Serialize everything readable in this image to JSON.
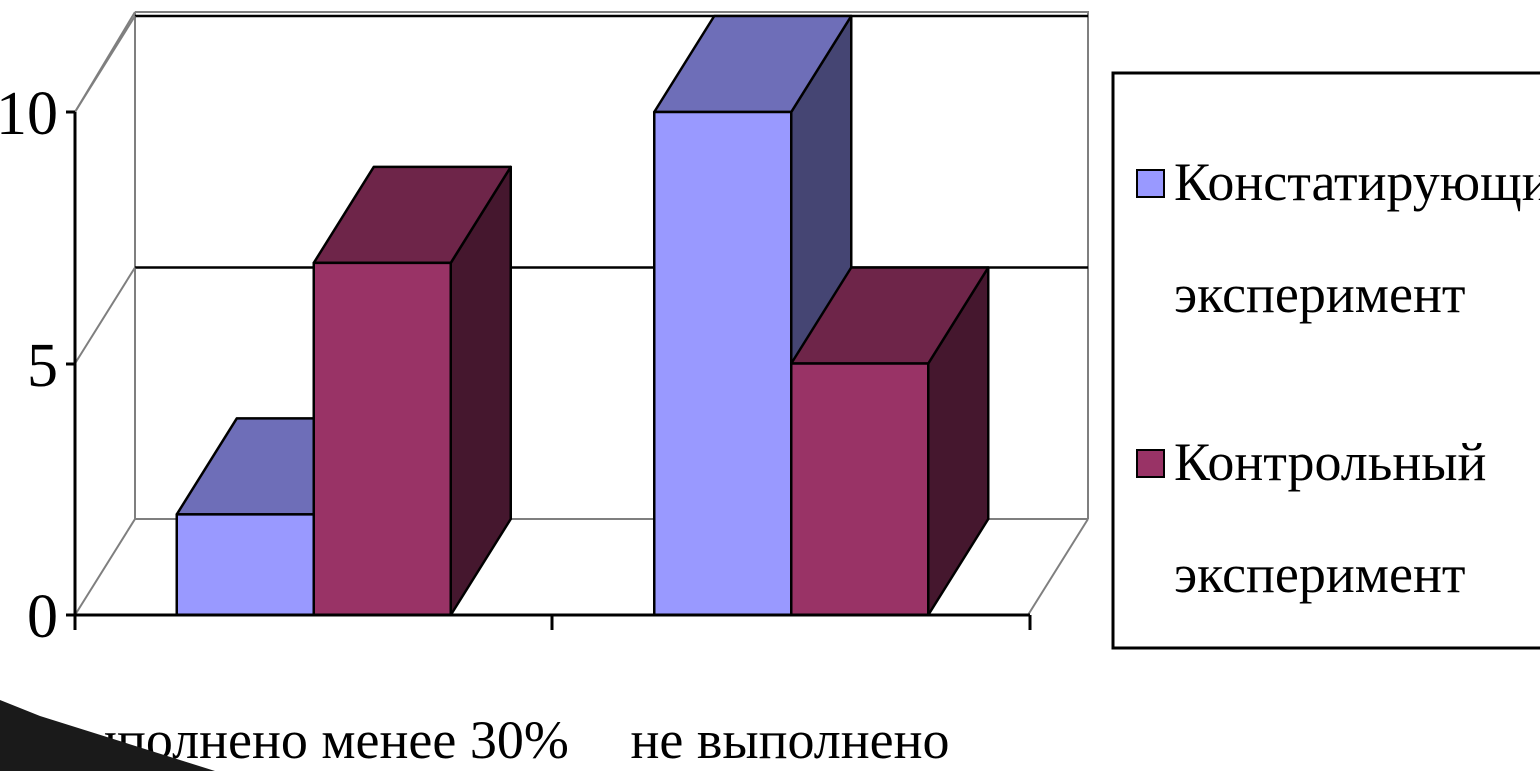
{
  "chart_data": {
    "type": "bar",
    "categories": [
      "выполнено менее 30%",
      "не выполнено"
    ],
    "series": [
      {
        "name": "Констатирующий эксперимент",
        "values": [
          2,
          10
        ],
        "color": "#9999ff",
        "legend_lines": [
          "Констатирующий",
          "эксперимент"
        ]
      },
      {
        "name": "Контрольный эксперимент",
        "values": [
          7,
          5
        ],
        "color": "#993366",
        "legend_lines": [
          "Контрольный",
          "эксперимент"
        ]
      }
    ],
    "yticks": [
      "0",
      "5",
      "10"
    ],
    "ylim": [
      0,
      10
    ],
    "legend_position": "right",
    "grid": true
  }
}
